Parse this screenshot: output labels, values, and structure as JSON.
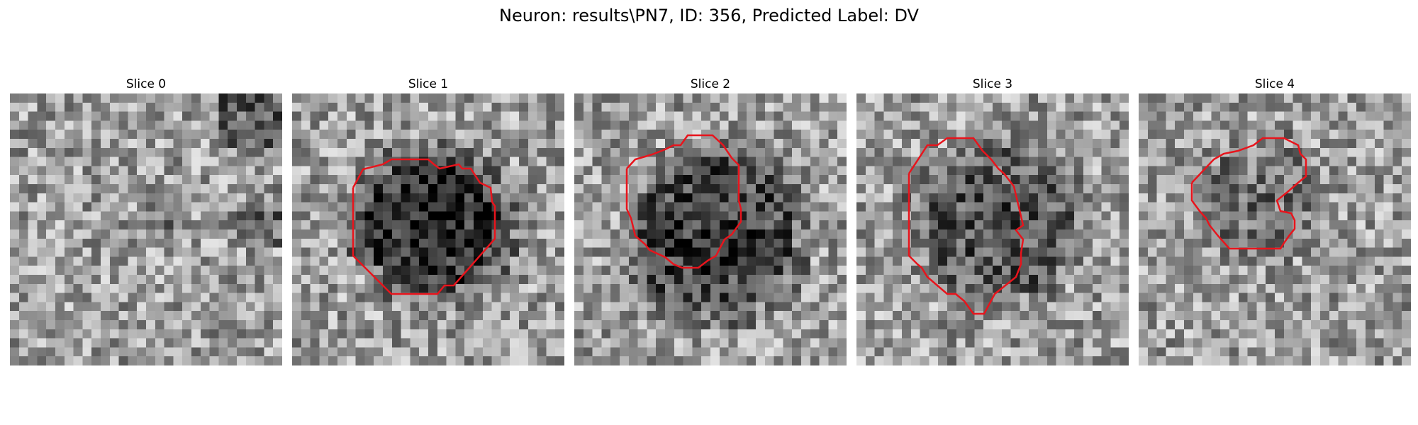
{
  "figure": {
    "title": "Neuron: results\\PN7, ID: 356, Predicted Label: DV"
  },
  "slices": [
    {
      "label": "Slice 0",
      "has_contour": false,
      "seed": 11,
      "blob": null
    },
    {
      "label": "Slice 1",
      "has_contour": true,
      "seed": 23,
      "blob": {
        "cx": 15,
        "cy": 14,
        "r": 7.5,
        "depth": 0.55
      }
    },
    {
      "label": "Slice 2",
      "has_contour": true,
      "seed": 37,
      "blob": {
        "cx": 15,
        "cy": 15,
        "r": 9,
        "depth": 0.45
      }
    },
    {
      "label": "Slice 3",
      "has_contour": true,
      "seed": 41,
      "blob": {
        "cx": 15,
        "cy": 14,
        "r": 8.5,
        "depth": 0.35
      }
    },
    {
      "label": "Slice 4",
      "has_contour": true,
      "seed": 53,
      "blob": {
        "cx": 13,
        "cy": 11,
        "r": 6,
        "depth": 0.2
      }
    }
  ],
  "colors": {
    "contour": "#e8141c",
    "background": "#ffffff"
  }
}
